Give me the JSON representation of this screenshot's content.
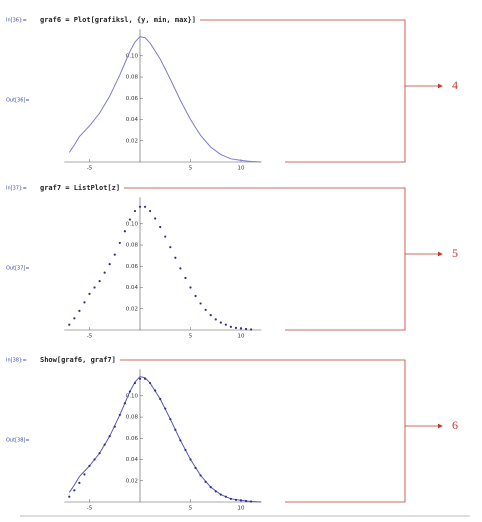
{
  "cells": [
    {
      "input_label": "In[36]:=",
      "code": "graf6 = Plot[grafiksl, {y, min, max}]",
      "output_label": "Out[36]=",
      "annotation": "4",
      "chart_data": {
        "type": "line",
        "xlim": [
          -7.5,
          12
        ],
        "ylim": [
          0,
          0.125
        ],
        "xticks": [
          -5,
          5,
          10
        ],
        "yticks": [
          0.02,
          0.04,
          0.06,
          0.08,
          {
            "value": 0.1,
            "label": "0.10"
          }
        ],
        "series": [
          {
            "type": "line",
            "color": "#7b7bd0",
            "x": [
              -7,
              -6.5,
              -6,
              -5,
              -4,
              -3,
              -2,
              -1,
              -0.5,
              0,
              0.5,
              1,
              2,
              3,
              4,
              5,
              6,
              7,
              8,
              9,
              10,
              11,
              12
            ],
            "values": [
              0.009,
              0.016,
              0.024,
              0.034,
              0.046,
              0.062,
              0.082,
              0.104,
              0.113,
              0.118,
              0.117,
              0.112,
              0.097,
              0.078,
              0.058,
              0.04,
              0.025,
              0.014,
              0.007,
              0.003,
              0.0015,
              0.0005,
              0
            ]
          }
        ]
      }
    },
    {
      "input_label": "In[37]:=",
      "code": "graf7 = ListPlot[z]",
      "output_label": "Out[37]=",
      "annotation": "5",
      "chart_data": {
        "type": "scatter",
        "xlim": [
          -7.5,
          12
        ],
        "ylim": [
          0,
          0.125
        ],
        "xticks": [
          -5,
          5,
          10
        ],
        "yticks": [
          0.02,
          0.04,
          0.06,
          0.08,
          {
            "value": 0.1,
            "label": "0.10"
          }
        ],
        "series": [
          {
            "type": "scatter",
            "color": "#2e2e8c",
            "x": [
              -7,
              -6.5,
              -6,
              -5.5,
              -5,
              -4.5,
              -4,
              -3.5,
              -3,
              -2.5,
              -2,
              -1.5,
              -1,
              -0.5,
              0,
              0.5,
              1,
              1.5,
              2,
              2.5,
              3,
              3.5,
              4,
              4.5,
              5,
              5.5,
              6,
              6.5,
              7,
              7.5,
              8,
              8.5,
              9,
              9.5,
              10,
              10.5,
              11
            ],
            "values": [
              0.005,
              0.011,
              0.018,
              0.026,
              0.034,
              0.04,
              0.046,
              0.054,
              0.062,
              0.071,
              0.082,
              0.093,
              0.104,
              0.112,
              0.116,
              0.116,
              0.112,
              0.105,
              0.097,
              0.088,
              0.078,
              0.068,
              0.058,
              0.049,
              0.04,
              0.032,
              0.025,
              0.019,
              0.014,
              0.01,
              0.007,
              0.005,
              0.003,
              0.002,
              0.0015,
              0.001,
              0.0005
            ]
          }
        ]
      }
    },
    {
      "input_label": "In[38]:=",
      "code": "Show[graf6, graf7]",
      "output_label": "Out[38]=",
      "annotation": "6",
      "chart_data": {
        "type": "line+scatter",
        "xlim": [
          -7.5,
          12
        ],
        "ylim": [
          0,
          0.125
        ],
        "xticks": [
          -5,
          5,
          10
        ],
        "yticks": [
          0.02,
          0.04,
          0.06,
          0.08,
          {
            "value": 0.1,
            "label": "0.10"
          }
        ],
        "series": [
          {
            "type": "line",
            "color": "#5a5ab8",
            "x": [
              -7,
              -6.5,
              -6,
              -5,
              -4,
              -3,
              -2,
              -1,
              -0.5,
              0,
              0.5,
              1,
              2,
              3,
              4,
              5,
              6,
              7,
              8,
              9,
              10,
              11,
              12
            ],
            "values": [
              0.009,
              0.016,
              0.024,
              0.034,
              0.046,
              0.062,
              0.082,
              0.104,
              0.113,
              0.118,
              0.117,
              0.112,
              0.097,
              0.078,
              0.058,
              0.04,
              0.025,
              0.014,
              0.007,
              0.003,
              0.0015,
              0.0005,
              0
            ]
          },
          {
            "type": "scatter",
            "color": "#2e2e8c",
            "x": [
              -7,
              -6.5,
              -6,
              -5.5,
              -5,
              -4.5,
              -4,
              -3.5,
              -3,
              -2.5,
              -2,
              -1.5,
              -1,
              -0.5,
              0,
              0.5,
              1,
              1.5,
              2,
              2.5,
              3,
              3.5,
              4,
              4.5,
              5,
              5.5,
              6,
              6.5,
              7,
              7.5,
              8,
              8.5,
              9,
              9.5,
              10,
              10.5,
              11
            ],
            "values": [
              0.005,
              0.011,
              0.018,
              0.026,
              0.034,
              0.04,
              0.046,
              0.054,
              0.062,
              0.071,
              0.082,
              0.093,
              0.104,
              0.112,
              0.116,
              0.116,
              0.112,
              0.105,
              0.097,
              0.088,
              0.078,
              0.068,
              0.058,
              0.049,
              0.04,
              0.032,
              0.025,
              0.019,
              0.014,
              0.01,
              0.007,
              0.005,
              0.003,
              0.002,
              0.0015,
              0.001,
              0.0005
            ]
          }
        ]
      }
    }
  ]
}
